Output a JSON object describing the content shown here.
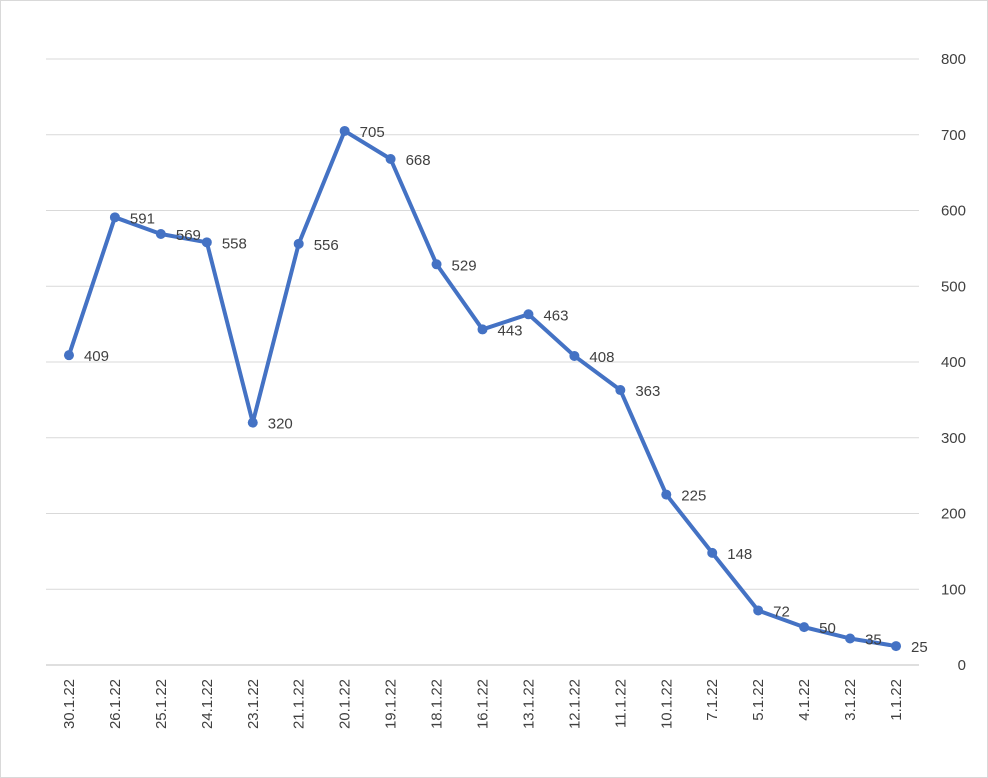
{
  "chart_data": {
    "type": "line",
    "title": "",
    "xlabel": "",
    "ylabel": "",
    "categories": [
      "30.1.22",
      "26.1.22",
      "25.1.22",
      "24.1.22",
      "23.1.22",
      "21.1.22",
      "20.1.22",
      "19.1.22",
      "18.1.22",
      "16.1.22",
      "13.1.22",
      "12.1.22",
      "11.1.22",
      "10.1.22",
      "7.1.22",
      "5.1.22",
      "4.1.22",
      "3.1.22",
      "1.1.22"
    ],
    "series": [
      {
        "values": [
          409,
          591,
          569,
          558,
          320,
          556,
          705,
          668,
          529,
          443,
          463,
          408,
          363,
          225,
          148,
          72,
          50,
          35,
          25
        ]
      }
    ],
    "data_labels": [
      "409",
      "591",
      "569",
      "558",
      "320",
      "556",
      "705",
      "668",
      "529",
      "443",
      "463",
      "408",
      "363",
      "225",
      "148",
      "72",
      "50",
      "35",
      "25"
    ],
    "ylim": [
      0,
      800
    ],
    "yticks": [
      "0",
      "100",
      "200",
      "300",
      "400",
      "500",
      "600",
      "700",
      "800"
    ],
    "y_axis_position": "right",
    "grid": true,
    "legend": "none",
    "colors": {
      "line": "#4472c4",
      "grid": "#d9d9d9",
      "text": "#404040",
      "axis": "#bfbfbf"
    }
  }
}
